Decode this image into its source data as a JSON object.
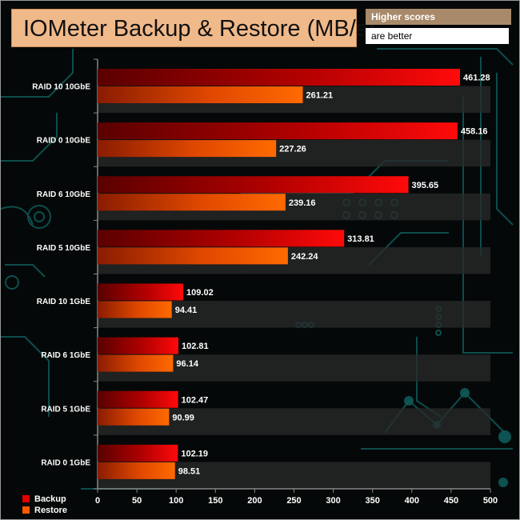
{
  "chart_data": {
    "type": "bar",
    "orientation": "horizontal",
    "title": "IOMeter Backup & Restore (MB/s)",
    "note_line1": "Higher scores",
    "note_line2": "are better",
    "categories": [
      "RAID 10 10GbE",
      "RAID 0 10GbE",
      "RAID 6 10GbE",
      "RAID 5 10GbE",
      "RAID 10 1GbE",
      "RAID 6 1GbE",
      "RAID 5 1GbE",
      "RAID 0 1GbE"
    ],
    "series": [
      {
        "name": "Backup",
        "values": [
          461.28,
          458.16,
          395.65,
          313.81,
          109.02,
          102.81,
          102.47,
          102.19
        ],
        "labels": [
          "461.28",
          "458.16",
          "395.65",
          "313.81",
          "109.02",
          "102.81",
          "102.47",
          "102.19"
        ],
        "color": "#e00000"
      },
      {
        "name": "Restore",
        "values": [
          261.21,
          227.26,
          239.16,
          242.24,
          94.41,
          96.14,
          90.99,
          98.51
        ],
        "labels": [
          "261.21",
          "227.26",
          "239.16",
          "242.24",
          "94.41",
          "96.14",
          "90.99",
          "98.51"
        ],
        "color": "#ff5a00"
      }
    ],
    "xlim": [
      0,
      500
    ],
    "xticks": [
      0,
      50,
      100,
      150,
      200,
      250,
      300,
      350,
      400,
      450,
      500
    ],
    "xlabel": "",
    "ylabel": "",
    "legend_position": "bottom-left"
  },
  "colors": {
    "title_bg": "#f0b98a",
    "note_bg": "#a88a6a",
    "circuit": "#0f5a5a",
    "stripe": "#2a2a2a"
  }
}
